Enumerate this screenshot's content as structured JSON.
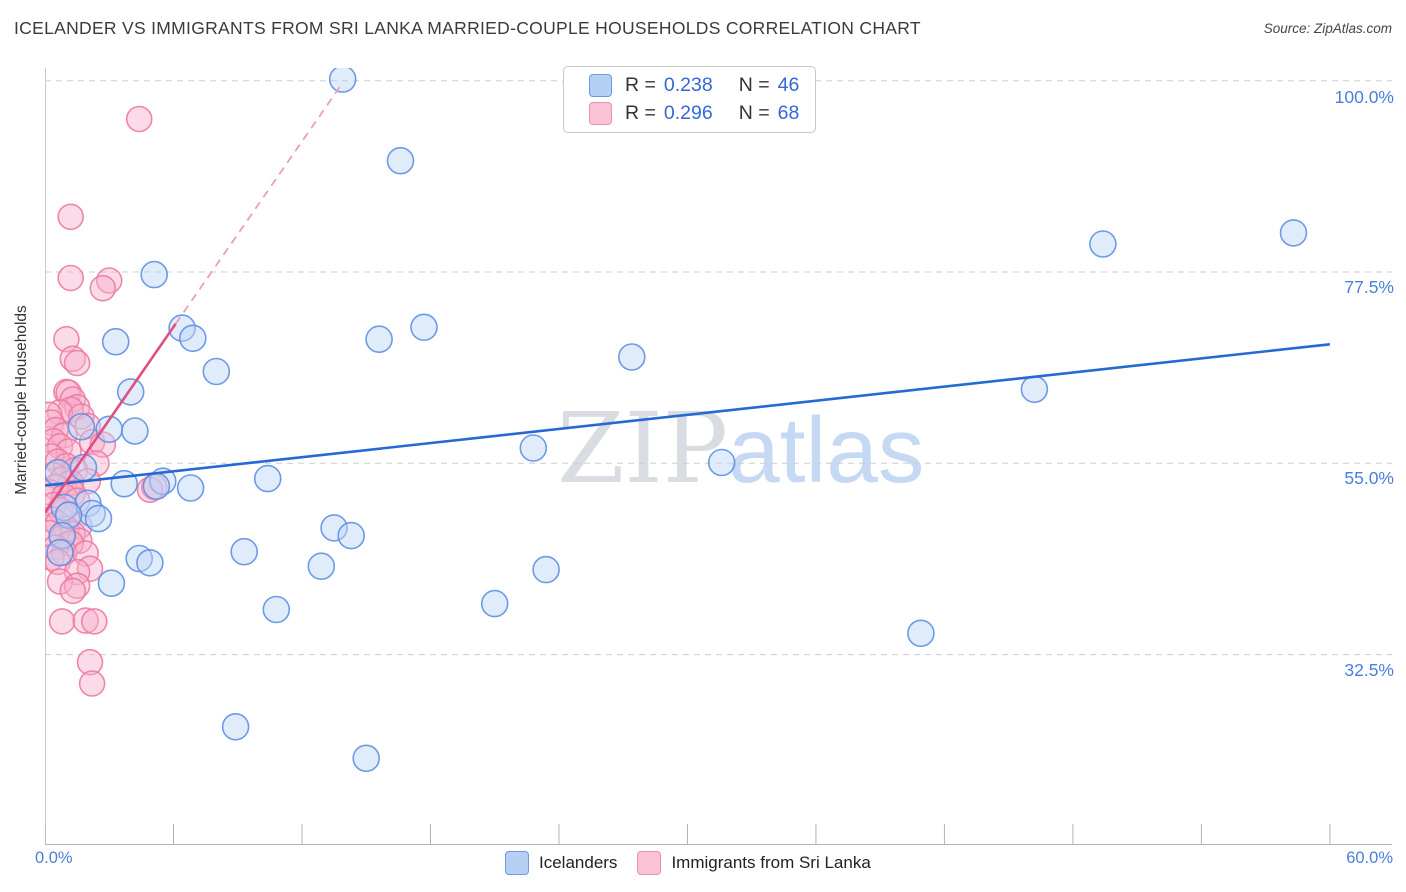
{
  "header": {
    "title": "ICELANDER VS IMMIGRANTS FROM SRI LANKA MARRIED-COUPLE HOUSEHOLDS CORRELATION CHART",
    "source": "Source: ZipAtlas.com"
  },
  "legend_box": {
    "rows": [
      {
        "r_label": "R =",
        "r_value": "0.238",
        "n_label": "N =",
        "n_value": "46",
        "series": "Icelanders"
      },
      {
        "r_label": "R =",
        "r_value": "0.296",
        "n_label": "N =",
        "n_value": "68",
        "series": "Immigrants from Sri Lanka"
      }
    ]
  },
  "axes": {
    "y_label": "Married-couple Households",
    "y_tick_labels": [
      "100.0%",
      "77.5%",
      "55.0%",
      "32.5%"
    ],
    "x_min_label": "0.0%",
    "x_max_label": "60.0%"
  },
  "bottom_legend": {
    "items": [
      {
        "label": "Icelanders",
        "color": "#b6d0f4"
      },
      {
        "label": "Immigrants from Sri Lanka",
        "color": "#f9c2d6"
      }
    ]
  },
  "watermark": {
    "part1": "ZIP",
    "part2": "atlas"
  },
  "colors": {
    "blue_point_stroke": "#5e90e6",
    "blue_point_fill": "#bcd4f6",
    "pink_point_stroke": "#ec7ba3",
    "pink_point_fill": "#f6afca",
    "blue_trend": "#2669d3",
    "pink_trend": "#e14e80",
    "pink_trend_dashed": "#ee9cba",
    "gridline": "#cdcdcd",
    "axis": "#b3b3b3",
    "tick_label_blue": "#4a80d9"
  },
  "chart_data": {
    "type": "scatter",
    "title": "ICELANDER VS IMMIGRANTS FROM SRI LANKA MARRIED-COUPLE HOUSEHOLDS CORRELATION CHART",
    "xlabel": "",
    "ylabel": "Married-couple Households",
    "x_axis": {
      "min": 0,
      "max": 62.9,
      "unit": "%",
      "tick_interval": 6,
      "axis_max_label": 60
    },
    "y_axis": {
      "min": 10.1,
      "max": 101.5,
      "unit": "%",
      "gridlines": [
        100,
        77.5,
        55,
        32.5
      ]
    },
    "grid": "dashed-horizontal",
    "legend_position": "bottom",
    "series": [
      {
        "name": "Icelanders",
        "R": 0.238,
        "N": 46,
        "points": [
          [
            13.9,
            100.2
          ],
          [
            16.6,
            90.6
          ],
          [
            58.3,
            82.1
          ],
          [
            49.4,
            80.8
          ],
          [
            5.1,
            77.2
          ],
          [
            17.7,
            71.0
          ],
          [
            6.4,
            70.9
          ],
          [
            6.9,
            69.7
          ],
          [
            15.6,
            69.6
          ],
          [
            3.3,
            69.3
          ],
          [
            27.4,
            67.5
          ],
          [
            8.0,
            65.8
          ],
          [
            46.2,
            63.7
          ],
          [
            4.0,
            63.4
          ],
          [
            1.7,
            59.3
          ],
          [
            3.0,
            59.0
          ],
          [
            4.2,
            58.8
          ],
          [
            22.8,
            56.8
          ],
          [
            31.6,
            55.1
          ],
          [
            1.8,
            54.5
          ],
          [
            0.6,
            53.9
          ],
          [
            10.4,
            53.2
          ],
          [
            5.5,
            52.9
          ],
          [
            3.7,
            52.6
          ],
          [
            5.2,
            52.3
          ],
          [
            6.8,
            52.1
          ],
          [
            2.0,
            50.3
          ],
          [
            0.9,
            49.8
          ],
          [
            2.2,
            49.1
          ],
          [
            1.1,
            48.9
          ],
          [
            2.5,
            48.5
          ],
          [
            13.5,
            47.4
          ],
          [
            0.8,
            46.5
          ],
          [
            14.3,
            46.5
          ],
          [
            9.3,
            44.6
          ],
          [
            0.7,
            44.5
          ],
          [
            4.4,
            43.8
          ],
          [
            4.9,
            43.3
          ],
          [
            12.9,
            42.9
          ],
          [
            23.4,
            42.5
          ],
          [
            3.1,
            40.9
          ],
          [
            21.0,
            38.5
          ],
          [
            10.8,
            37.8
          ],
          [
            40.9,
            35.0
          ],
          [
            8.9,
            24.0
          ],
          [
            15.0,
            20.3
          ]
        ]
      },
      {
        "name": "Immigrants from Sri Lanka",
        "R": 0.296,
        "N": 68,
        "points": [
          [
            4.4,
            95.5
          ],
          [
            1.2,
            84.0
          ],
          [
            1.2,
            76.8
          ],
          [
            3.0,
            76.5
          ],
          [
            2.7,
            75.6
          ],
          [
            1.0,
            69.6
          ],
          [
            1.3,
            67.3
          ],
          [
            1.5,
            66.8
          ],
          [
            1.0,
            63.4
          ],
          [
            1.1,
            63.3
          ],
          [
            1.3,
            62.5
          ],
          [
            1.5,
            61.6
          ],
          [
            1.2,
            61.3
          ],
          [
            0.7,
            61.0
          ],
          [
            0.2,
            60.7
          ],
          [
            1.7,
            60.5
          ],
          [
            0.3,
            59.8
          ],
          [
            2.0,
            59.4
          ],
          [
            0.5,
            58.9
          ],
          [
            0.9,
            58.3
          ],
          [
            0.4,
            57.6
          ],
          [
            2.2,
            57.5
          ],
          [
            2.7,
            57.2
          ],
          [
            0.7,
            57.0
          ],
          [
            1.1,
            56.4
          ],
          [
            0.3,
            55.8
          ],
          [
            0.6,
            55.2
          ],
          [
            2.4,
            55.0
          ],
          [
            1.0,
            54.7
          ],
          [
            1.4,
            54.2
          ],
          [
            0.4,
            53.6
          ],
          [
            0.8,
            53.1
          ],
          [
            2.0,
            52.9
          ],
          [
            1.2,
            52.7
          ],
          [
            0.5,
            52.2
          ],
          [
            5.1,
            52.2
          ],
          [
            4.9,
            51.9
          ],
          [
            0.2,
            51.6
          ],
          [
            1.3,
            51.5
          ],
          [
            0.9,
            51.1
          ],
          [
            1.5,
            50.6
          ],
          [
            0.4,
            50.1
          ],
          [
            0.7,
            49.5
          ],
          [
            1.1,
            49.0
          ],
          [
            0.3,
            48.4
          ],
          [
            0.6,
            47.9
          ],
          [
            1.6,
            47.6
          ],
          [
            1.0,
            47.3
          ],
          [
            0.2,
            46.8
          ],
          [
            1.3,
            46.7
          ],
          [
            0.8,
            46.2
          ],
          [
            1.6,
            45.9
          ],
          [
            1.2,
            45.6
          ],
          [
            0.5,
            45.1
          ],
          [
            0.9,
            44.5
          ],
          [
            1.9,
            44.4
          ],
          [
            0.3,
            43.9
          ],
          [
            0.6,
            43.4
          ],
          [
            2.1,
            42.6
          ],
          [
            1.5,
            42.2
          ],
          [
            0.7,
            41.1
          ],
          [
            1.5,
            40.6
          ],
          [
            1.3,
            40.0
          ],
          [
            0.8,
            36.4
          ],
          [
            1.9,
            36.5
          ],
          [
            2.3,
            36.4
          ],
          [
            2.1,
            31.6
          ],
          [
            2.2,
            29.1
          ]
        ]
      }
    ],
    "trend_lines": [
      {
        "series": "Icelanders",
        "style": "solid",
        "from": [
          0,
          52.4
        ],
        "to": [
          60,
          69.0
        ]
      },
      {
        "series": "Immigrants from Sri Lanka",
        "style": "solid",
        "from": [
          0,
          49.2
        ],
        "to": [
          6.1,
          71.4
        ]
      },
      {
        "series": "Immigrants from Sri Lanka",
        "style": "dashed",
        "from": [
          6.1,
          71.4
        ],
        "to": [
          13.8,
          99.4
        ]
      }
    ]
  }
}
